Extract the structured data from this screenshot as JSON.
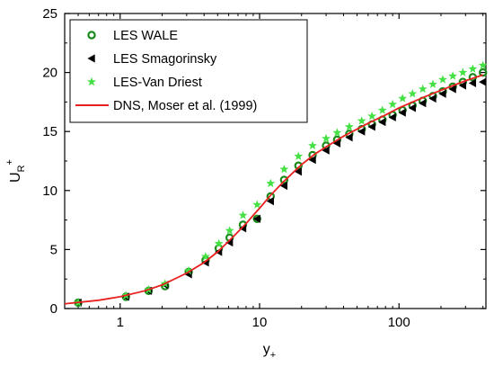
{
  "chart_data": {
    "type": "scatter",
    "title": "",
    "xlabel": {
      "main": "y",
      "sub": "+"
    },
    "ylabel": {
      "main": "U",
      "sub": "R",
      "sup": "+"
    },
    "xscale": "log",
    "xlim": [
      0.4,
      420
    ],
    "ylim": [
      0,
      25
    ],
    "xticks": [
      1,
      10,
      100
    ],
    "xtick_labels": [
      "1",
      "10",
      "100"
    ],
    "yticks": [
      0,
      5,
      10,
      15,
      20,
      25
    ],
    "ytick_labels": [
      "0",
      "5",
      "10",
      "15",
      "20",
      "25"
    ],
    "grid": false,
    "legend": {
      "placement": "top-left"
    },
    "series": [
      {
        "name": "LES WALE",
        "marker": "open-circle",
        "color": "#1a8a1a",
        "x": [
          0.5,
          1.1,
          1.6,
          2.1,
          3.1,
          4.1,
          5.1,
          6.1,
          7.6,
          9.6,
          12,
          15,
          19,
          24,
          30,
          36,
          44,
          54,
          64,
          76,
          90,
          106,
          125,
          148,
          175,
          206,
          243,
          287,
          338,
          400
        ],
        "y": [
          0.5,
          1.0,
          1.5,
          1.9,
          3.1,
          4.1,
          5.1,
          6.0,
          7.1,
          7.6,
          9.5,
          10.9,
          12.1,
          13.0,
          13.8,
          14.3,
          14.8,
          15.2,
          15.6,
          16.0,
          16.4,
          16.8,
          17.2,
          17.6,
          18.0,
          18.4,
          18.8,
          19.2,
          19.6,
          20.0
        ]
      },
      {
        "name": "LES Smagorinsky",
        "marker": "left-triangle",
        "color": "#000000",
        "x": [
          0.5,
          1.1,
          1.6,
          2.1,
          3.1,
          4.1,
          5.1,
          6.1,
          7.6,
          9.6,
          12,
          15,
          19,
          24,
          30,
          36,
          44,
          54,
          64,
          76,
          90,
          106,
          125,
          148,
          175,
          206,
          243,
          287,
          338,
          400
        ],
        "y": [
          0.5,
          1.0,
          1.5,
          2.0,
          2.9,
          3.9,
          4.8,
          5.6,
          6.8,
          7.6,
          9.1,
          10.4,
          11.6,
          12.6,
          13.4,
          14.0,
          14.5,
          15.0,
          15.4,
          15.8,
          16.2,
          16.6,
          17.0,
          17.4,
          17.8,
          18.2,
          18.6,
          18.9,
          19.1,
          19.2
        ]
      },
      {
        "name": "LES-Van Driest",
        "marker": "star",
        "color": "#44e044",
        "x": [
          0.5,
          1.1,
          1.6,
          2.1,
          3.1,
          4.1,
          5.1,
          6.1,
          7.6,
          9.6,
          12,
          15,
          19,
          24,
          30,
          36,
          44,
          54,
          64,
          76,
          90,
          106,
          125,
          148,
          175,
          206,
          243,
          287,
          338,
          400
        ],
        "y": [
          0.5,
          1.1,
          1.6,
          2.1,
          3.2,
          4.4,
          5.5,
          6.6,
          7.9,
          8.8,
          10.6,
          11.8,
          12.9,
          13.8,
          14.4,
          14.9,
          15.4,
          15.9,
          16.3,
          16.8,
          17.3,
          17.8,
          18.2,
          18.6,
          19.0,
          19.4,
          19.7,
          20.0,
          20.3,
          20.6
        ]
      },
      {
        "name": "DNS, Moser et al. (1999)",
        "marker": "line",
        "color": "#e82020",
        "x": [
          0.4,
          0.7,
          1,
          1.5,
          2,
          3,
          4,
          5,
          6,
          7,
          8,
          9,
          10,
          12,
          15,
          20,
          25,
          30,
          40,
          50,
          60,
          80,
          100,
          150,
          200,
          300,
          400
        ],
        "y": [
          0.4,
          0.7,
          1.0,
          1.5,
          2.0,
          3.0,
          3.9,
          4.8,
          5.7,
          6.5,
          7.2,
          7.9,
          8.5,
          9.6,
          10.8,
          12.2,
          13.1,
          13.7,
          14.6,
          15.2,
          15.7,
          16.4,
          17.0,
          17.9,
          18.5,
          19.3,
          19.8
        ]
      }
    ]
  }
}
